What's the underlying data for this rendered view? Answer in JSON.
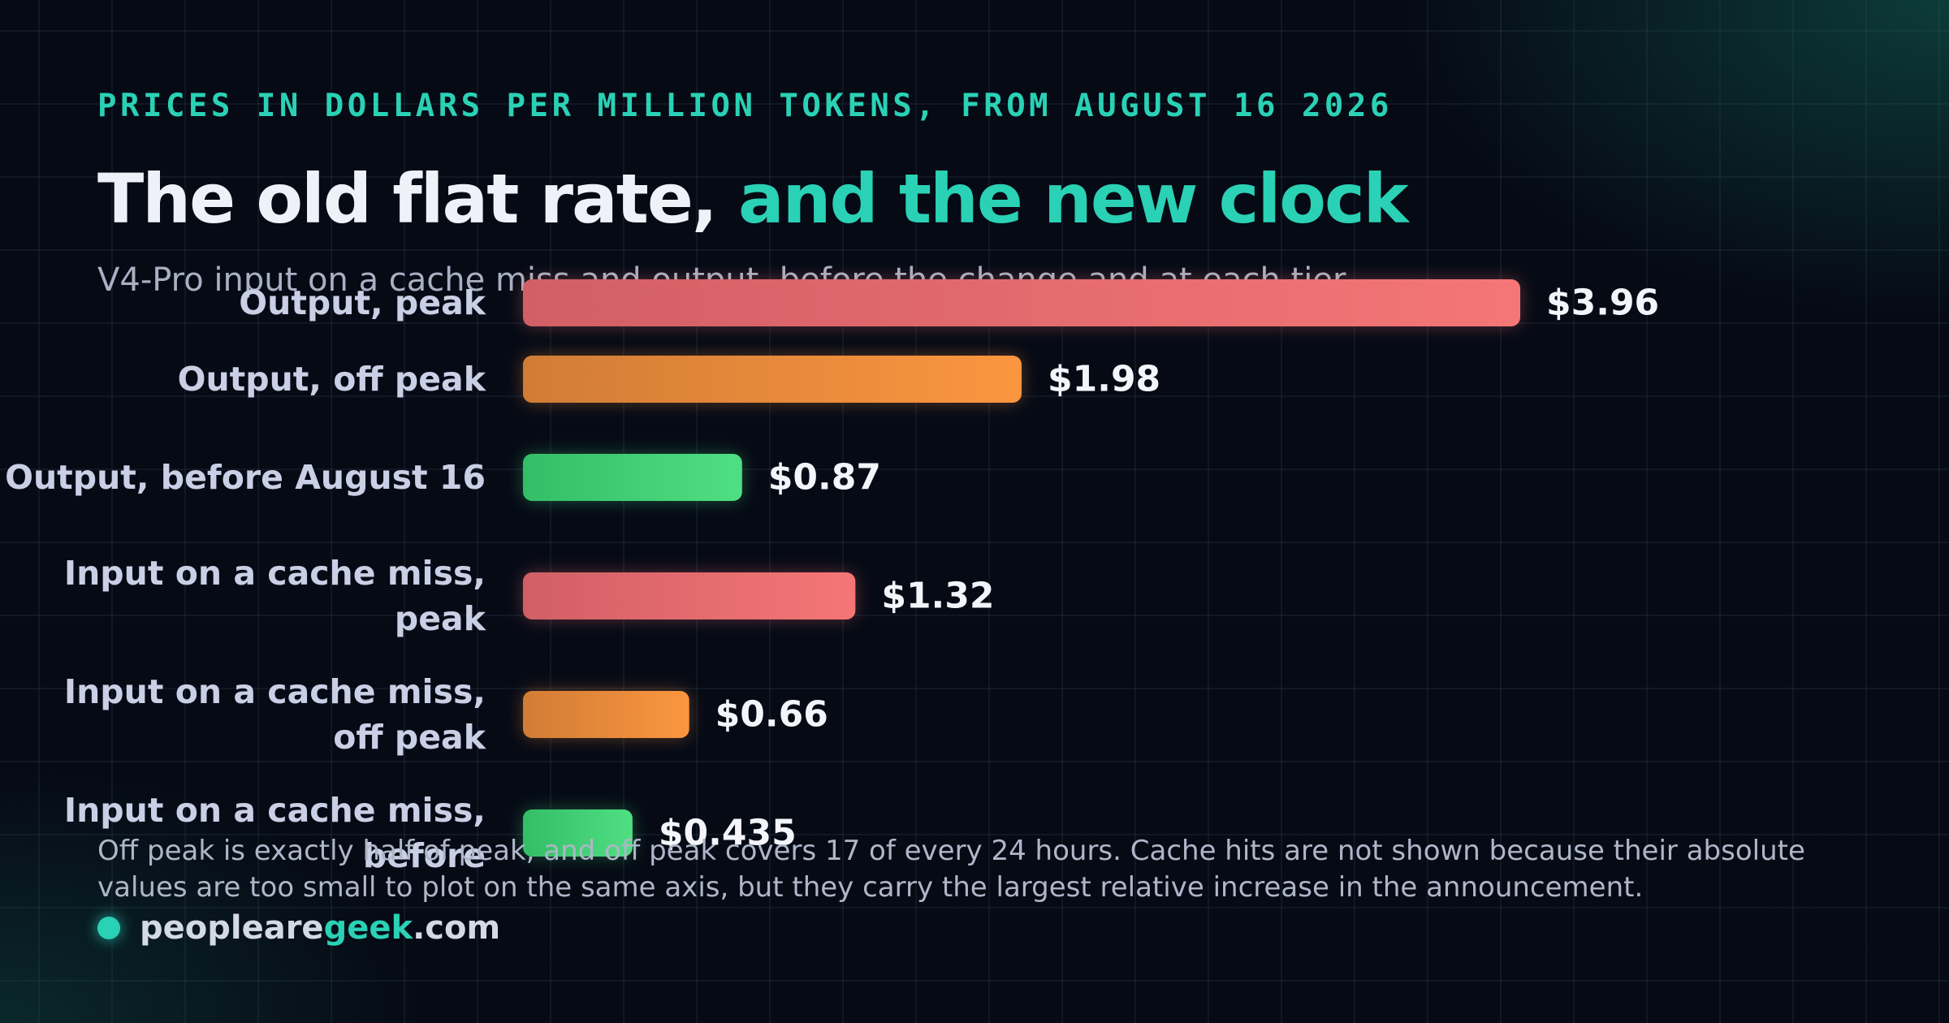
{
  "header": {
    "eyebrow": "PRICES IN DOLLARS PER MILLION TOKENS, FROM AUGUST 16 2026",
    "title_plain": "The old flat rate, ",
    "title_accent": "and the new clock",
    "subtitle": "V4-Pro input on a cache miss and output, before the change and at each tier"
  },
  "colors": {
    "accent": "#2ad1b5",
    "peak": "#f07272",
    "off_peak": "#f5913d",
    "before": "#42d77a"
  },
  "chart_data": {
    "type": "bar",
    "orientation": "horizontal",
    "categories": [
      "Output, peak",
      "Output, off peak",
      "Output, before August 16",
      "Input on a cache miss, peak",
      "Input on a cache miss, off peak",
      "Input on a cache miss, before"
    ],
    "values": [
      3.96,
      1.98,
      0.87,
      1.32,
      0.66,
      0.435
    ],
    "value_labels": [
      "$3.96",
      "$1.98",
      "$0.87",
      "$1.32",
      "$0.66",
      "$0.435"
    ],
    "bar_tiers": [
      "peak",
      "off_peak",
      "before",
      "peak",
      "off_peak",
      "before"
    ],
    "xlim": [
      0,
      3.96
    ],
    "grid": false,
    "legend": "none"
  },
  "footnote": "Off peak is exactly half of peak, and off peak covers 17 of every 24 hours. Cache hits are not shown because their absolute values are too small to plot on the same axis, but they carry the largest relative increase in the announcement.",
  "brand": {
    "part1": "peopleare",
    "part2": "geek",
    "part3": ".com"
  }
}
